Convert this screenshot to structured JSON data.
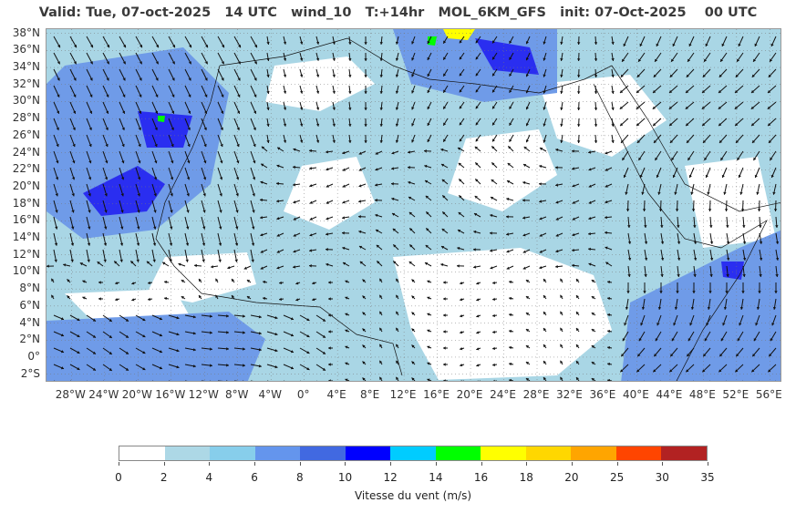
{
  "title": "Valid: Tue, 07-oct-2025   14 UTC   wind_10   T:+14hr   MOL_6KM_GFS   init: 07-Oct-2025    00 UTC",
  "map": {
    "variable": "wind_10",
    "model": "MOL_6KM_GFS",
    "lat_labels": [
      "38°N",
      "36°N",
      "34°N",
      "32°N",
      "30°N",
      "28°N",
      "26°N",
      "24°N",
      "22°N",
      "20°N",
      "18°N",
      "16°N",
      "14°N",
      "12°N",
      "10°N",
      "8°N",
      "6°N",
      "4°N",
      "2°N",
      "0°",
      "2°S"
    ],
    "lon_labels": [
      "28°W",
      "24°W",
      "20°W",
      "16°W",
      "12°W",
      "8°W",
      "4°W",
      "0°",
      "4°E",
      "8°E",
      "12°E",
      "16°E",
      "20°E",
      "24°E",
      "28°E",
      "32°E",
      "36°E",
      "40°E",
      "44°E",
      "48°E",
      "52°E",
      "56°E"
    ],
    "lat_range": [
      -3,
      38.5
    ],
    "lon_range": [
      -31,
      57.5
    ]
  },
  "colorbar": {
    "title": "Vitesse du vent (m/s)",
    "bounds": [
      "0",
      "2",
      "4",
      "6",
      "8",
      "10",
      "12",
      "14",
      "16",
      "18",
      "20",
      "25",
      "30",
      "35"
    ],
    "colors": [
      "#ffffff",
      "#add8e6",
      "#87ceeb",
      "#6495ed",
      "#4169e1",
      "#0000ff",
      "#00ccff",
      "#00ff00",
      "#ffff00",
      "#ffd700",
      "#ffa500",
      "#ff4500",
      "#b22222"
    ]
  }
}
